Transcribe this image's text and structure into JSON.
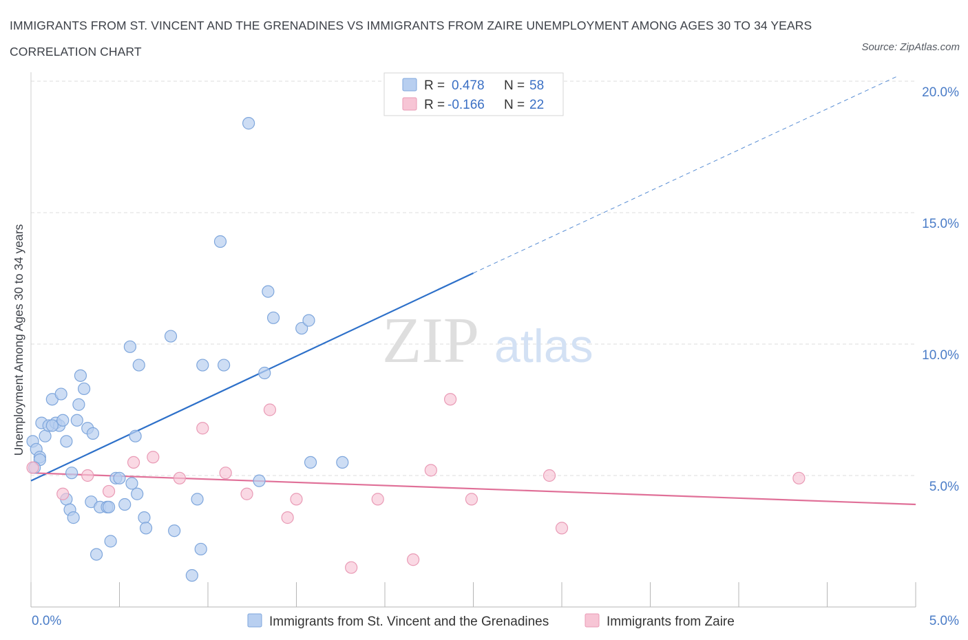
{
  "title": "IMMIGRANTS FROM ST. VINCENT AND THE GRENADINES VS IMMIGRANTS FROM ZAIRE UNEMPLOYMENT AMONG AGES 30 TO 34 YEARS CORRELATION CHART",
  "source": "Source: ZipAtlas.com",
  "watermark": {
    "zip": "ZIP",
    "atlas": "atlas"
  },
  "colors": {
    "blue_fill": "#b8cff0",
    "blue_stroke": "#7ea6dc",
    "blue_line": "#2d70c9",
    "pink_fill": "#f7c5d5",
    "pink_stroke": "#e99ab5",
    "pink_line": "#e07098",
    "grid": "#dcdcdc",
    "tick_text": "#4a7cc7"
  },
  "legend": {
    "r_label": "R =",
    "n_label": "N =",
    "rows": [
      {
        "r": "0.478",
        "n": "58"
      },
      {
        "r": "-0.166",
        "n": "22"
      }
    ]
  },
  "chart_data": {
    "type": "scatter",
    "title": "IMMIGRANTS FROM ST. VINCENT AND THE GRENADINES VS IMMIGRANTS FROM ZAIRE UNEMPLOYMENT AMONG AGES 30 TO 34 YEARS CORRELATION CHART",
    "xlabel": "",
    "ylabel": "Unemployment Among Ages 30 to 34 years",
    "xlim": [
      0,
      5
    ],
    "ylim": [
      0,
      20
    ],
    "x_tick_labels": [
      "0.0%",
      "5.0%"
    ],
    "y_ticks": [
      5,
      10,
      15,
      20
    ],
    "y_tick_labels": [
      "5.0%",
      "10.0%",
      "15.0%",
      "20.0%"
    ],
    "grid": true,
    "legend_position": "top-center",
    "series": [
      {
        "name": "Immigrants from St. Vincent and the Grenadines",
        "r": 0.478,
        "n": 58,
        "trend": {
          "x": [
            0,
            2.5
          ],
          "y": [
            4.8,
            12.7
          ],
          "dashed_to": [
            4.9,
            20.2
          ]
        },
        "points": [
          [
            0.01,
            6.3
          ],
          [
            0.03,
            6.0
          ],
          [
            0.05,
            5.7
          ],
          [
            0.06,
            7.0
          ],
          [
            0.08,
            6.5
          ],
          [
            0.1,
            6.9
          ],
          [
            0.12,
            7.9
          ],
          [
            0.14,
            7.0
          ],
          [
            0.16,
            6.9
          ],
          [
            0.17,
            8.1
          ],
          [
            0.18,
            7.1
          ],
          [
            0.2,
            6.3
          ],
          [
            0.2,
            4.1
          ],
          [
            0.22,
            3.7
          ],
          [
            0.23,
            5.1
          ],
          [
            0.24,
            3.4
          ],
          [
            0.26,
            7.1
          ],
          [
            0.27,
            7.7
          ],
          [
            0.28,
            8.8
          ],
          [
            0.3,
            8.3
          ],
          [
            0.32,
            6.8
          ],
          [
            0.34,
            4.0
          ],
          [
            0.35,
            6.6
          ],
          [
            0.37,
            2.0
          ],
          [
            0.39,
            3.8
          ],
          [
            0.43,
            3.8
          ],
          [
            0.44,
            3.8
          ],
          [
            0.45,
            2.5
          ],
          [
            0.48,
            4.9
          ],
          [
            0.5,
            4.9
          ],
          [
            0.53,
            3.9
          ],
          [
            0.56,
            9.9
          ],
          [
            0.57,
            4.7
          ],
          [
            0.59,
            6.5
          ],
          [
            0.6,
            4.3
          ],
          [
            0.61,
            9.2
          ],
          [
            0.64,
            3.4
          ],
          [
            0.65,
            3.0
          ],
          [
            0.79,
            10.3
          ],
          [
            0.81,
            2.9
          ],
          [
            0.94,
            4.1
          ],
          [
            0.96,
            2.2
          ],
          [
            0.97,
            9.2
          ],
          [
            0.91,
            1.2
          ],
          [
            1.07,
            13.9
          ],
          [
            1.09,
            9.2
          ],
          [
            1.23,
            18.4
          ],
          [
            1.29,
            4.8
          ],
          [
            1.32,
            8.9
          ],
          [
            1.34,
            12.0
          ],
          [
            1.37,
            11.0
          ],
          [
            1.53,
            10.6
          ],
          [
            1.57,
            10.9
          ],
          [
            1.58,
            5.5
          ],
          [
            1.76,
            5.5
          ],
          [
            0.05,
            5.6
          ],
          [
            0.12,
            6.9
          ],
          [
            0.02,
            5.3
          ]
        ]
      },
      {
        "name": "Immigrants from Zaire",
        "r": -0.166,
        "n": 22,
        "trend": {
          "x": [
            0,
            5
          ],
          "y": [
            5.1,
            3.9
          ]
        },
        "points": [
          [
            0.01,
            5.3
          ],
          [
            0.18,
            4.3
          ],
          [
            0.32,
            5.0
          ],
          [
            0.44,
            4.4
          ],
          [
            0.58,
            5.5
          ],
          [
            0.69,
            5.7
          ],
          [
            0.84,
            4.9
          ],
          [
            0.97,
            6.8
          ],
          [
            1.1,
            5.1
          ],
          [
            1.22,
            4.3
          ],
          [
            1.35,
            7.5
          ],
          [
            1.45,
            3.4
          ],
          [
            1.5,
            4.1
          ],
          [
            1.81,
            1.5
          ],
          [
            1.96,
            4.1
          ],
          [
            2.16,
            1.8
          ],
          [
            2.26,
            5.2
          ],
          [
            2.37,
            7.9
          ],
          [
            2.49,
            4.1
          ],
          [
            2.93,
            5.0
          ],
          [
            3.0,
            3.0
          ],
          [
            4.34,
            4.9
          ]
        ]
      }
    ]
  }
}
